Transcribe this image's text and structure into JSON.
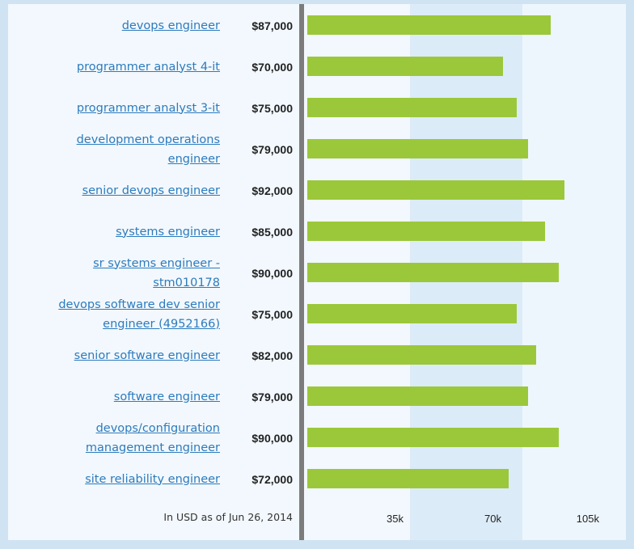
{
  "chart_data": {
    "type": "bar",
    "orientation": "horizontal",
    "categories": [
      "devops engineer",
      "programmer analyst 4-it",
      "programmer analyst 3-it",
      "development operations engineer",
      "senior devops engineer",
      "systems engineer",
      "sr systems engineer - stm010178",
      "devops software dev senior engineer (4952166)",
      "senior software engineer",
      "software engineer",
      "devops/configuration management engineer",
      "site reliability engineer"
    ],
    "category_lines": [
      [
        "devops engineer"
      ],
      [
        "programmer analyst 4-it"
      ],
      [
        "programmer analyst 3-it"
      ],
      [
        "development operations",
        "engineer"
      ],
      [
        "senior devops engineer"
      ],
      [
        "systems engineer"
      ],
      [
        "sr systems engineer -",
        "stm010178"
      ],
      [
        "devops software dev senior",
        "engineer (4952166)"
      ],
      [
        "senior software engineer"
      ],
      [
        "software engineer"
      ],
      [
        "devops/configuration",
        "management engineer"
      ],
      [
        "site reliability engineer"
      ]
    ],
    "values": [
      87000,
      70000,
      75000,
      79000,
      92000,
      85000,
      90000,
      75000,
      82000,
      79000,
      90000,
      72000
    ],
    "value_labels": [
      "$87,000",
      "$70,000",
      "$75,000",
      "$79,000",
      "$92,000",
      "$85,000",
      "$90,000",
      "$75,000",
      "$82,000",
      "$79,000",
      "$90,000",
      "$72,000"
    ],
    "xlim": [
      0,
      105000
    ],
    "x_ticks": [
      35000,
      70000,
      105000
    ],
    "x_tick_labels": [
      "35k",
      "70k",
      "105k"
    ],
    "note": "In USD as of Jun 26, 2014",
    "bar_color": "#9bc83a",
    "label_color": "#2d7bbd"
  }
}
